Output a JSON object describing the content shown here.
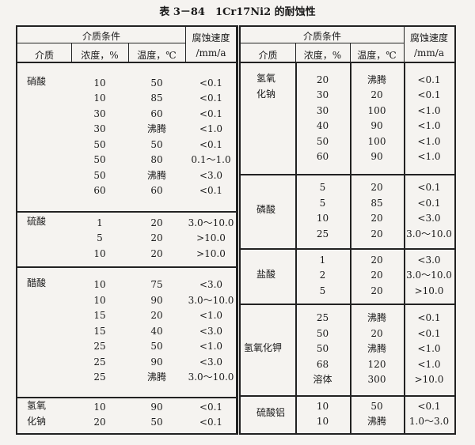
{
  "title": "表 3－84　1Cr17Ni2 的耐蚀性",
  "header": {
    "conditions": "介质条件",
    "rate_line1": "腐蚀速度",
    "rate_line2": "/mm/a",
    "medium": "介质",
    "concentration": "浓度，%",
    "temperature": "温度，℃"
  },
  "left": [
    {
      "medium": [
        "硝酸"
      ],
      "rows": [
        [
          "10",
          "50",
          "<0.1"
        ],
        [
          "10",
          "85",
          "<0.1"
        ],
        [
          "30",
          "60",
          "<0.1"
        ],
        [
          "30",
          "沸腾",
          "<1.0"
        ],
        [
          "50",
          "50",
          "<0.1"
        ],
        [
          "50",
          "80",
          "0.1～1.0"
        ],
        [
          "50",
          "沸腾",
          "<3.0"
        ],
        [
          "60",
          "60",
          "<0.1"
        ]
      ]
    },
    {
      "medium": [
        "硫酸"
      ],
      "rows": [
        [
          "1",
          "20",
          "3.0～10.0"
        ],
        [
          "5",
          "20",
          ">10.0"
        ],
        [
          "10",
          "20",
          ">10.0"
        ]
      ]
    },
    {
      "medium": [
        "醋酸"
      ],
      "rows": [
        [
          "10",
          "75",
          "<3.0"
        ],
        [
          "10",
          "90",
          "3.0～10.0"
        ],
        [
          "15",
          "20",
          "<1.0"
        ],
        [
          "15",
          "40",
          "<3.0"
        ],
        [
          "25",
          "50",
          "<1.0"
        ],
        [
          "25",
          "90",
          "<3.0"
        ],
        [
          "25",
          "沸腾",
          "3.0～10.0"
        ]
      ]
    },
    {
      "medium": [
        "氢氧",
        "化钠"
      ],
      "rows": [
        [
          "10",
          "90",
          "<0.1"
        ],
        [
          "20",
          "50",
          "<0.1"
        ]
      ]
    }
  ],
  "right": [
    {
      "medium": [
        "氢氧",
        "化钠"
      ],
      "rows": [
        [
          "20",
          "沸腾",
          "<0.1"
        ],
        [
          "30",
          "20",
          "<0.1"
        ],
        [
          "30",
          "100",
          "<1.0"
        ],
        [
          "40",
          "90",
          "<1.0"
        ],
        [
          "50",
          "100",
          "<1.0"
        ],
        [
          "60",
          "90",
          "<1.0"
        ]
      ]
    },
    {
      "medium": [
        "磷酸"
      ],
      "rows": [
        [
          "5",
          "20",
          "<0.1"
        ],
        [
          "5",
          "85",
          "<0.1"
        ],
        [
          "10",
          "20",
          "<3.0"
        ],
        [
          "25",
          "20",
          "3.0～10.0"
        ]
      ]
    },
    {
      "medium": [
        "盐酸"
      ],
      "rows": [
        [
          "1",
          "20",
          "<3.0"
        ],
        [
          "2",
          "20",
          "3.0～10.0"
        ],
        [
          "5",
          "20",
          ">10.0"
        ]
      ]
    },
    {
      "medium": [
        "氢氧化钾"
      ],
      "rows": [
        [
          "25",
          "沸腾",
          "<0.1"
        ],
        [
          "50",
          "20",
          "<0.1"
        ],
        [
          "50",
          "沸腾",
          "<1.0"
        ],
        [
          "68",
          "120",
          "<1.0"
        ],
        [
          "溶体",
          "300",
          ">10.0"
        ]
      ]
    },
    {
      "medium": [
        "硫酸铝"
      ],
      "rows": [
        [
          "10",
          "50",
          "<0.1"
        ],
        [
          "10",
          "沸腾",
          "1.0～3.0"
        ]
      ]
    }
  ]
}
